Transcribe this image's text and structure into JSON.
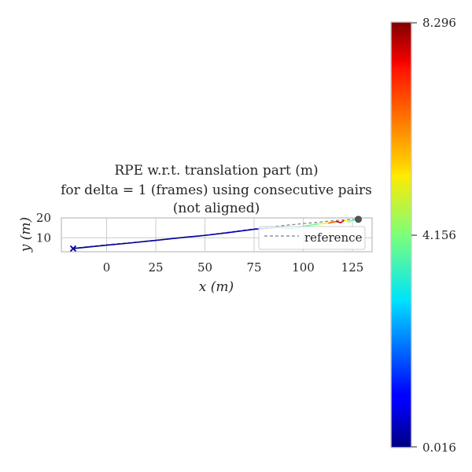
{
  "chart_data": {
    "type": "line",
    "title_lines": [
      "RPE w.r.t. translation part (m)",
      "for delta = 1 (frames) using consecutive pairs",
      "(not aligned)"
    ],
    "xlabel": "x (m)",
    "ylabel": "y (m)",
    "xlim": [
      -23,
      135
    ],
    "ylim": [
      3,
      20
    ],
    "xticks": [
      0,
      25,
      50,
      75,
      100,
      125
    ],
    "xtick_labels": [
      "0",
      "25",
      "50",
      "75",
      "100",
      "125"
    ],
    "yticks": [
      10,
      20
    ],
    "ytick_labels": [
      "10",
      "20"
    ],
    "grid": true,
    "legend": {
      "placement": "lower-right",
      "entries": [
        "reference"
      ]
    },
    "series": [
      {
        "name": "reference",
        "style": "dashed",
        "color": "#7f7f7f",
        "x": [
          -17,
          0,
          25,
          50,
          75,
          90,
          105,
          118,
          126
        ],
        "y": [
          4.8,
          6.5,
          8.8,
          11.3,
          14.5,
          16.2,
          17.6,
          18.8,
          19.3
        ]
      },
      {
        "colormap_series": true,
        "points": [
          {
            "x": -17,
            "y": 4.6,
            "v": 0.1
          },
          {
            "x": -10,
            "y": 5.3,
            "v": 0.2
          },
          {
            "x": 0,
            "y": 6.3,
            "v": 0.15
          },
          {
            "x": 10,
            "y": 7.2,
            "v": 0.2
          },
          {
            "x": 25,
            "y": 8.7,
            "v": 0.25
          },
          {
            "x": 40,
            "y": 10.3,
            "v": 0.3
          },
          {
            "x": 50,
            "y": 11.2,
            "v": 0.2
          },
          {
            "x": 62,
            "y": 12.6,
            "v": 0.4
          },
          {
            "x": 75,
            "y": 14.3,
            "v": 0.6
          },
          {
            "x": 82,
            "y": 14.8,
            "v": 1.5
          },
          {
            "x": 88,
            "y": 15.3,
            "v": 2.5
          },
          {
            "x": 95,
            "y": 14.5,
            "v": 3.0
          },
          {
            "x": 100,
            "y": 15.8,
            "v": 3.4
          },
          {
            "x": 108,
            "y": 17.0,
            "v": 4.5
          },
          {
            "x": 113,
            "y": 17.4,
            "v": 5.5
          },
          {
            "x": 117,
            "y": 18.2,
            "v": 7.5
          },
          {
            "x": 119,
            "y": 17.6,
            "v": 8.2
          },
          {
            "x": 121,
            "y": 18.9,
            "v": 6.5
          },
          {
            "x": 123,
            "y": 18.0,
            "v": 3.8
          },
          {
            "x": 125,
            "y": 18.7,
            "v": 4.6
          },
          {
            "x": 127,
            "y": 19.4,
            "v": 2.6
          },
          {
            "x": 129,
            "y": 19.1,
            "v": 5.8
          }
        ]
      }
    ],
    "markers": {
      "start": {
        "x": -17,
        "y": 4.6,
        "shape": "x",
        "color": "#00008b"
      },
      "end": {
        "x": 128,
        "y": 19.3,
        "shape": "circle",
        "color": "#555555"
      }
    },
    "colorbar": {
      "min": 0.016,
      "mid": 4.156,
      "max": 8.296,
      "tick_labels": [
        "0.016",
        "4.156",
        "8.296"
      ],
      "colormap": "jet"
    }
  }
}
